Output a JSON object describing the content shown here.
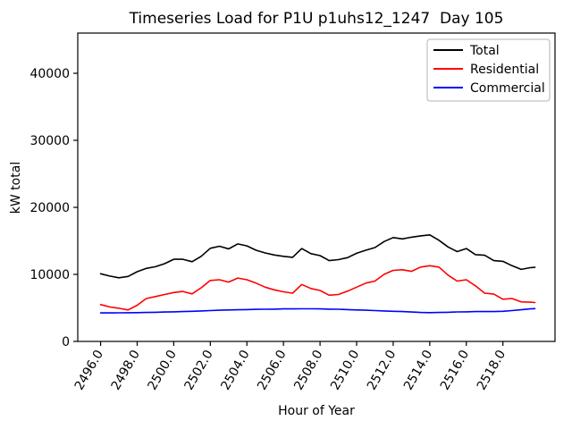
{
  "chart_data": {
    "type": "line",
    "title": "Timeseries Load for P1U p1uhs12_1247  Day 105",
    "xlabel": "Hour of Year",
    "ylabel": "kW total",
    "xlim": [
      2494.75,
      2520.85
    ],
    "ylim": [
      0,
      46000
    ],
    "grid": false,
    "legend_position": "upper right",
    "xticks": [
      2496,
      2498,
      2500,
      2502,
      2504,
      2506,
      2508,
      2510,
      2512,
      2514,
      2516,
      2518
    ],
    "xtick_labels": [
      "2496.0",
      "2498.0",
      "2500.0",
      "2502.0",
      "2504.0",
      "2506.0",
      "2508.0",
      "2510.0",
      "2512.0",
      "2514.0",
      "2516.0",
      "2518.0"
    ],
    "yticks": [
      0,
      10000,
      20000,
      30000,
      40000
    ],
    "ytick_labels": [
      "0",
      "10000",
      "20000",
      "30000",
      "40000"
    ],
    "x": [
      2496.0,
      2496.5,
      2497.0,
      2497.5,
      2498.0,
      2498.5,
      2499.0,
      2499.5,
      2500.0,
      2500.5,
      2501.0,
      2501.5,
      2502.0,
      2502.5,
      2503.0,
      2503.5,
      2504.0,
      2504.5,
      2505.0,
      2505.5,
      2506.0,
      2506.5,
      2507.0,
      2507.5,
      2508.0,
      2508.5,
      2509.0,
      2509.5,
      2510.0,
      2510.5,
      2511.0,
      2511.5,
      2512.0,
      2512.5,
      2513.0,
      2513.5,
      2514.0,
      2514.5,
      2515.0,
      2515.5,
      2516.0,
      2516.5,
      2517.0,
      2517.5,
      2518.0,
      2518.5,
      2519.0,
      2519.5,
      2519.75
    ],
    "series": [
      {
        "name": "Total",
        "color": "#000000",
        "values": [
          10100,
          9750,
          9500,
          9700,
          10400,
          10900,
          11150,
          11600,
          12250,
          12250,
          11900,
          12700,
          13900,
          14200,
          13800,
          14550,
          14250,
          13600,
          13200,
          12900,
          12700,
          12550,
          13850,
          13100,
          12800,
          12050,
          12200,
          12500,
          13150,
          13600,
          14000,
          14900,
          15500,
          15300,
          15550,
          15750,
          15900,
          15100,
          14100,
          13400,
          13850,
          12950,
          12850,
          12050,
          11950,
          11300,
          10750,
          11000,
          11050
        ]
      },
      {
        "name": "Residential",
        "color": "#ff0000",
        "values": [
          5500,
          5150,
          4950,
          4700,
          5400,
          6400,
          6700,
          7000,
          7300,
          7450,
          7100,
          8000,
          9100,
          9200,
          8850,
          9450,
          9200,
          8700,
          8100,
          7700,
          7400,
          7200,
          8500,
          7900,
          7600,
          6900,
          7000,
          7500,
          8100,
          8700,
          9000,
          10000,
          10600,
          10700,
          10450,
          11100,
          11300,
          11100,
          9900,
          9000,
          9200,
          8300,
          7200,
          7050,
          6300,
          6400,
          5900,
          5850,
          5800
        ]
      },
      {
        "name": "Commercial",
        "color": "#0000ff",
        "values": [
          4250,
          4250,
          4270,
          4280,
          4300,
          4320,
          4350,
          4380,
          4420,
          4450,
          4500,
          4550,
          4600,
          4650,
          4700,
          4720,
          4750,
          4780,
          4800,
          4820,
          4850,
          4850,
          4870,
          4870,
          4850,
          4820,
          4800,
          4750,
          4700,
          4650,
          4600,
          4550,
          4500,
          4450,
          4380,
          4320,
          4300,
          4320,
          4350,
          4400,
          4420,
          4450,
          4450,
          4450,
          4500,
          4600,
          4720,
          4850,
          4900
        ]
      }
    ]
  }
}
